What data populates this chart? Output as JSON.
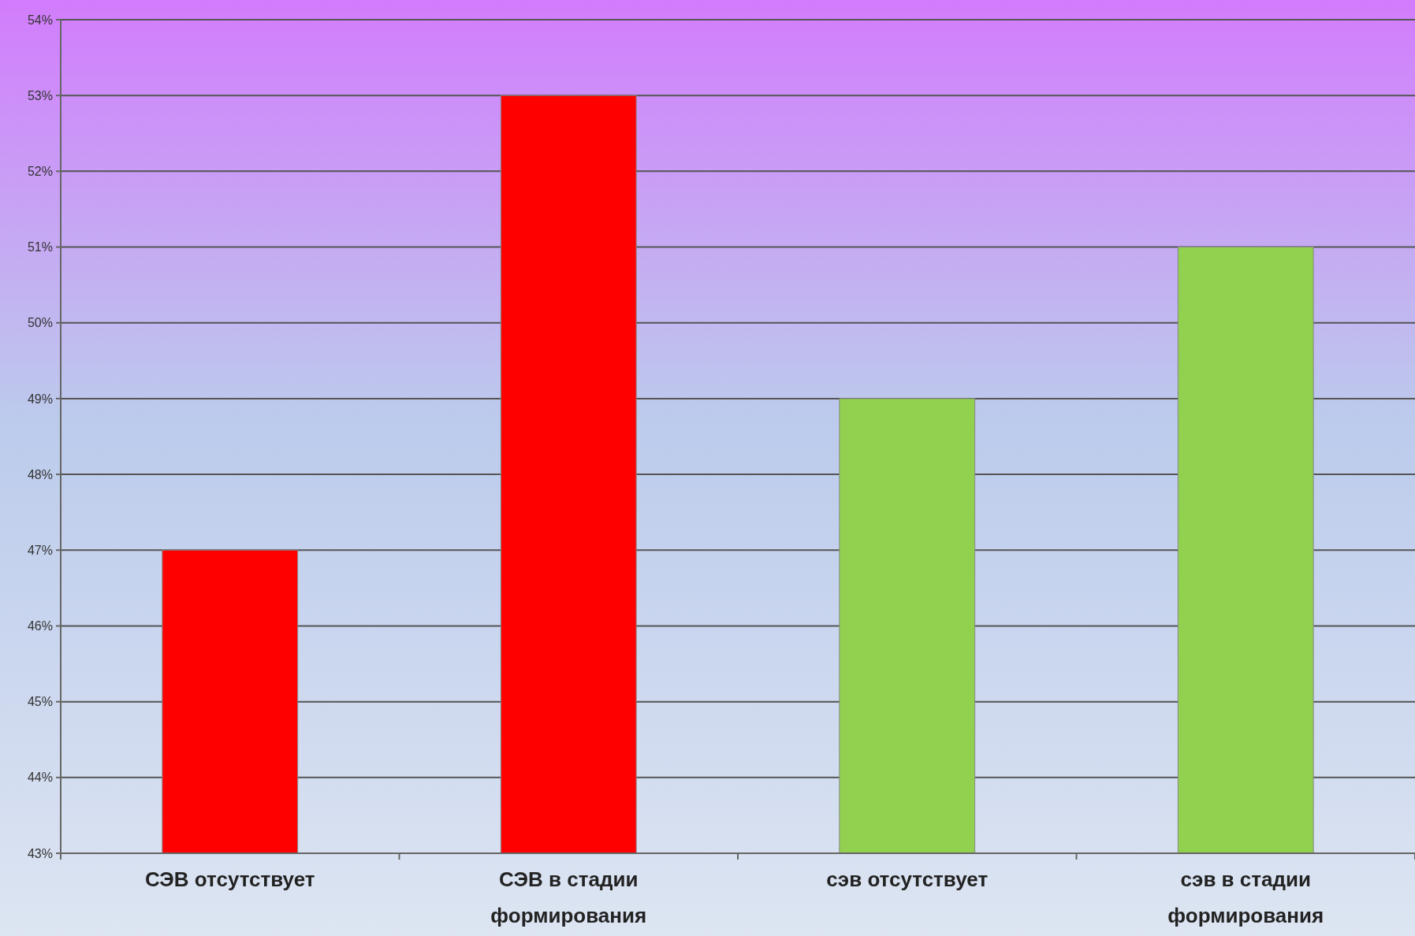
{
  "chart_data": {
    "type": "bar",
    "categories": [
      "СЭВ отсутствует",
      "СЭВ в стадии формирования",
      "сэв отсутствует",
      "сэв в стадии формирования"
    ],
    "values": [
      47,
      53,
      49,
      51
    ],
    "colors": [
      "#ff0000",
      "#ff0000",
      "#92d050",
      "#92d050"
    ],
    "ylim": [
      43,
      54
    ],
    "yticks": [
      {
        "value": 43,
        "label": "43%"
      },
      {
        "value": 44,
        "label": "44%"
      },
      {
        "value": 45,
        "label": "45%"
      },
      {
        "value": 46,
        "label": "46%"
      },
      {
        "value": 47,
        "label": "47%"
      },
      {
        "value": 48,
        "label": "48%"
      },
      {
        "value": 49,
        "label": "49%"
      },
      {
        "value": 50,
        "label": "50%"
      },
      {
        "value": 51,
        "label": "51%"
      },
      {
        "value": 52,
        "label": "52%"
      },
      {
        "value": 53,
        "label": "53%"
      },
      {
        "value": 54,
        "label": "54%"
      }
    ],
    "grid": "y"
  }
}
